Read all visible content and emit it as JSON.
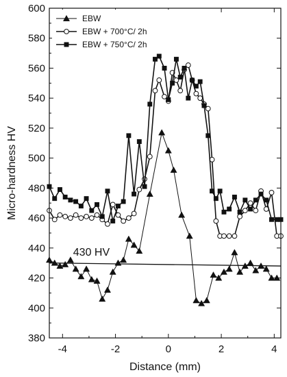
{
  "chart_data": {
    "type": "line",
    "title": "",
    "xlabel": "Distance (mm)",
    "ylabel": "Micro-hardness HV",
    "xlim": [
      -4.5,
      4.25
    ],
    "ylim": [
      380,
      600
    ],
    "x_ticks": [
      -4,
      -2,
      0,
      2,
      4
    ],
    "y_ticks": [
      380,
      400,
      420,
      440,
      460,
      480,
      500,
      520,
      540,
      560,
      580,
      600
    ],
    "grid": false,
    "legend_position": "top-left",
    "series": [
      {
        "name": "EBW",
        "marker": "triangle-filled",
        "color": "#111111",
        "points": [
          [
            -4.5,
            432
          ],
          [
            -4.3,
            430
          ],
          [
            -4.1,
            428
          ],
          [
            -3.9,
            429
          ],
          [
            -3.7,
            432
          ],
          [
            -3.5,
            426
          ],
          [
            -3.3,
            421
          ],
          [
            -3.1,
            426
          ],
          [
            -2.9,
            419
          ],
          [
            -2.7,
            418
          ],
          [
            -2.5,
            406
          ],
          [
            -2.3,
            412
          ],
          [
            -2.1,
            424
          ],
          [
            -1.9,
            430
          ],
          [
            -1.7,
            432
          ],
          [
            -1.5,
            446
          ],
          [
            -1.3,
            442
          ],
          [
            -1.1,
            438
          ],
          [
            -0.7,
            476
          ],
          [
            -0.25,
            517
          ],
          [
            0.0,
            505
          ],
          [
            0.2,
            492
          ],
          [
            0.5,
            462
          ],
          [
            0.8,
            448
          ],
          [
            1.05,
            405
          ],
          [
            1.25,
            403
          ],
          [
            1.45,
            405
          ],
          [
            1.7,
            422
          ],
          [
            1.9,
            420
          ],
          [
            2.1,
            424
          ],
          [
            2.3,
            426
          ],
          [
            2.5,
            437
          ],
          [
            2.7,
            424
          ],
          [
            2.9,
            428
          ],
          [
            3.1,
            430
          ],
          [
            3.3,
            425
          ],
          [
            3.5,
            428
          ],
          [
            3.7,
            426
          ],
          [
            3.9,
            420
          ],
          [
            4.1,
            420
          ]
        ]
      },
      {
        "name": "EBW + 700°C/ 2h",
        "marker": "circle-open",
        "color": "#111111",
        "points": [
          [
            -4.5,
            465
          ],
          [
            -4.3,
            459
          ],
          [
            -4.1,
            462
          ],
          [
            -3.9,
            461
          ],
          [
            -3.7,
            460
          ],
          [
            -3.5,
            462
          ],
          [
            -3.3,
            460
          ],
          [
            -3.1,
            461
          ],
          [
            -2.9,
            460
          ],
          [
            -2.7,
            462
          ],
          [
            -2.5,
            459
          ],
          [
            -2.3,
            456
          ],
          [
            -2.1,
            469
          ],
          [
            -1.9,
            462
          ],
          [
            -1.7,
            458
          ],
          [
            -1.5,
            460
          ],
          [
            -1.3,
            463
          ],
          [
            -1.1,
            479
          ],
          [
            -0.9,
            486
          ],
          [
            -0.7,
            501
          ],
          [
            -0.5,
            545
          ],
          [
            -0.35,
            552
          ],
          [
            -0.15,
            541
          ],
          [
            0.0,
            538
          ],
          [
            0.15,
            557
          ],
          [
            0.3,
            552
          ],
          [
            0.45,
            545
          ],
          [
            0.6,
            559
          ],
          [
            0.75,
            562
          ],
          [
            0.9,
            552
          ],
          [
            1.05,
            543
          ],
          [
            1.2,
            540
          ],
          [
            1.35,
            536
          ],
          [
            1.5,
            533
          ],
          [
            1.65,
            499
          ],
          [
            1.8,
            458
          ],
          [
            1.95,
            448
          ],
          [
            2.1,
            448
          ],
          [
            2.3,
            448
          ],
          [
            2.5,
            448
          ],
          [
            2.7,
            461
          ],
          [
            2.9,
            465
          ],
          [
            3.1,
            470
          ],
          [
            3.3,
            465
          ],
          [
            3.5,
            478
          ],
          [
            3.7,
            466
          ],
          [
            3.9,
            477
          ],
          [
            4.1,
            448
          ],
          [
            4.25,
            448
          ]
        ]
      },
      {
        "name": "EBW + 750°C/ 2h",
        "marker": "square-filled",
        "color": "#111111",
        "points": [
          [
            -4.5,
            481
          ],
          [
            -4.3,
            473
          ],
          [
            -4.1,
            479
          ],
          [
            -3.9,
            474
          ],
          [
            -3.7,
            472
          ],
          [
            -3.5,
            471
          ],
          [
            -3.3,
            468
          ],
          [
            -3.1,
            473
          ],
          [
            -2.9,
            465
          ],
          [
            -2.7,
            469
          ],
          [
            -2.5,
            461
          ],
          [
            -2.3,
            478
          ],
          [
            -2.1,
            458
          ],
          [
            -1.9,
            468
          ],
          [
            -1.7,
            471
          ],
          [
            -1.5,
            515
          ],
          [
            -1.3,
            476
          ],
          [
            -1.1,
            511
          ],
          [
            -0.9,
            481
          ],
          [
            -0.7,
            536
          ],
          [
            -0.5,
            566
          ],
          [
            -0.35,
            568
          ],
          [
            -0.15,
            560
          ],
          [
            0.0,
            539
          ],
          [
            0.15,
            550
          ],
          [
            0.3,
            566
          ],
          [
            0.45,
            554
          ],
          [
            0.6,
            560
          ],
          [
            0.75,
            540
          ],
          [
            0.9,
            552
          ],
          [
            1.05,
            548
          ],
          [
            1.2,
            551
          ],
          [
            1.35,
            535
          ],
          [
            1.5,
            515
          ],
          [
            1.65,
            478
          ],
          [
            1.8,
            473
          ],
          [
            1.95,
            478
          ],
          [
            2.1,
            464
          ],
          [
            2.3,
            466
          ],
          [
            2.5,
            474
          ],
          [
            2.7,
            464
          ],
          [
            2.9,
            472
          ],
          [
            3.1,
            466
          ],
          [
            3.3,
            472
          ],
          [
            3.5,
            476
          ],
          [
            3.7,
            472
          ],
          [
            3.9,
            459
          ],
          [
            4.1,
            459
          ],
          [
            4.25,
            459
          ]
        ]
      }
    ],
    "annotations": [
      {
        "text": "430 HV",
        "x": -3.6,
        "y": 433
      }
    ],
    "reference_line": {
      "from": [
        -4.5,
        430
      ],
      "to": [
        4.25,
        428
      ]
    }
  }
}
